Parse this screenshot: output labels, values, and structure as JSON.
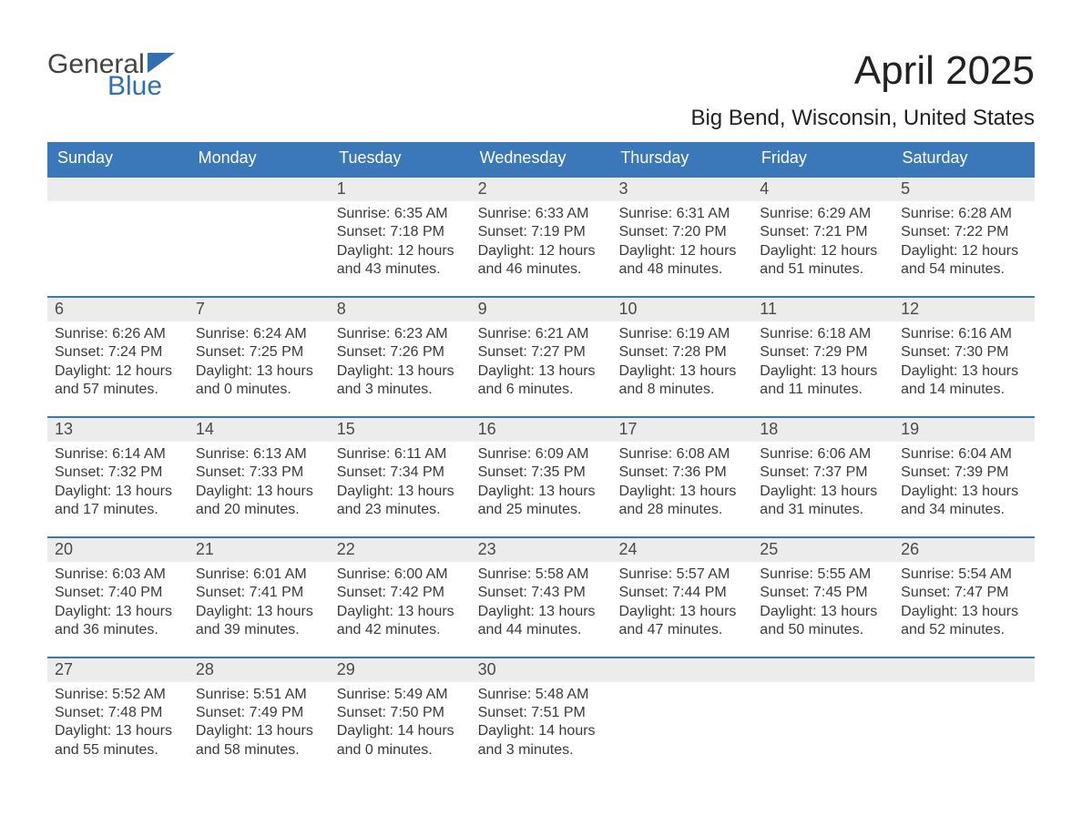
{
  "logo": {
    "word1": "General",
    "word2": "Blue",
    "accent_color": "#2f6fb2"
  },
  "header": {
    "month_title": "April 2025",
    "location": "Big Bend, Wisconsin, United States"
  },
  "calendar": {
    "header_bg": "#3a78b9",
    "header_fg": "#ffffff",
    "row_accent": "#3a78b9",
    "daybar_bg": "#ececec",
    "days_of_week": [
      "Sunday",
      "Monday",
      "Tuesday",
      "Wednesday",
      "Thursday",
      "Friday",
      "Saturday"
    ],
    "weeks": [
      [
        {
          "n": "",
          "sunrise": "",
          "sunset": "",
          "daylight": "",
          "empty": true
        },
        {
          "n": "",
          "sunrise": "",
          "sunset": "",
          "daylight": "",
          "empty": true
        },
        {
          "n": "1",
          "sunrise": "Sunrise: 6:35 AM",
          "sunset": "Sunset: 7:18 PM",
          "daylight": "Daylight: 12 hours and 43 minutes."
        },
        {
          "n": "2",
          "sunrise": "Sunrise: 6:33 AM",
          "sunset": "Sunset: 7:19 PM",
          "daylight": "Daylight: 12 hours and 46 minutes."
        },
        {
          "n": "3",
          "sunrise": "Sunrise: 6:31 AM",
          "sunset": "Sunset: 7:20 PM",
          "daylight": "Daylight: 12 hours and 48 minutes."
        },
        {
          "n": "4",
          "sunrise": "Sunrise: 6:29 AM",
          "sunset": "Sunset: 7:21 PM",
          "daylight": "Daylight: 12 hours and 51 minutes."
        },
        {
          "n": "5",
          "sunrise": "Sunrise: 6:28 AM",
          "sunset": "Sunset: 7:22 PM",
          "daylight": "Daylight: 12 hours and 54 minutes."
        }
      ],
      [
        {
          "n": "6",
          "sunrise": "Sunrise: 6:26 AM",
          "sunset": "Sunset: 7:24 PM",
          "daylight": "Daylight: 12 hours and 57 minutes."
        },
        {
          "n": "7",
          "sunrise": "Sunrise: 6:24 AM",
          "sunset": "Sunset: 7:25 PM",
          "daylight": "Daylight: 13 hours and 0 minutes."
        },
        {
          "n": "8",
          "sunrise": "Sunrise: 6:23 AM",
          "sunset": "Sunset: 7:26 PM",
          "daylight": "Daylight: 13 hours and 3 minutes."
        },
        {
          "n": "9",
          "sunrise": "Sunrise: 6:21 AM",
          "sunset": "Sunset: 7:27 PM",
          "daylight": "Daylight: 13 hours and 6 minutes."
        },
        {
          "n": "10",
          "sunrise": "Sunrise: 6:19 AM",
          "sunset": "Sunset: 7:28 PM",
          "daylight": "Daylight: 13 hours and 8 minutes."
        },
        {
          "n": "11",
          "sunrise": "Sunrise: 6:18 AM",
          "sunset": "Sunset: 7:29 PM",
          "daylight": "Daylight: 13 hours and 11 minutes."
        },
        {
          "n": "12",
          "sunrise": "Sunrise: 6:16 AM",
          "sunset": "Sunset: 7:30 PM",
          "daylight": "Daylight: 13 hours and 14 minutes."
        }
      ],
      [
        {
          "n": "13",
          "sunrise": "Sunrise: 6:14 AM",
          "sunset": "Sunset: 7:32 PM",
          "daylight": "Daylight: 13 hours and 17 minutes."
        },
        {
          "n": "14",
          "sunrise": "Sunrise: 6:13 AM",
          "sunset": "Sunset: 7:33 PM",
          "daylight": "Daylight: 13 hours and 20 minutes."
        },
        {
          "n": "15",
          "sunrise": "Sunrise: 6:11 AM",
          "sunset": "Sunset: 7:34 PM",
          "daylight": "Daylight: 13 hours and 23 minutes."
        },
        {
          "n": "16",
          "sunrise": "Sunrise: 6:09 AM",
          "sunset": "Sunset: 7:35 PM",
          "daylight": "Daylight: 13 hours and 25 minutes."
        },
        {
          "n": "17",
          "sunrise": "Sunrise: 6:08 AM",
          "sunset": "Sunset: 7:36 PM",
          "daylight": "Daylight: 13 hours and 28 minutes."
        },
        {
          "n": "18",
          "sunrise": "Sunrise: 6:06 AM",
          "sunset": "Sunset: 7:37 PM",
          "daylight": "Daylight: 13 hours and 31 minutes."
        },
        {
          "n": "19",
          "sunrise": "Sunrise: 6:04 AM",
          "sunset": "Sunset: 7:39 PM",
          "daylight": "Daylight: 13 hours and 34 minutes."
        }
      ],
      [
        {
          "n": "20",
          "sunrise": "Sunrise: 6:03 AM",
          "sunset": "Sunset: 7:40 PM",
          "daylight": "Daylight: 13 hours and 36 minutes."
        },
        {
          "n": "21",
          "sunrise": "Sunrise: 6:01 AM",
          "sunset": "Sunset: 7:41 PM",
          "daylight": "Daylight: 13 hours and 39 minutes."
        },
        {
          "n": "22",
          "sunrise": "Sunrise: 6:00 AM",
          "sunset": "Sunset: 7:42 PM",
          "daylight": "Daylight: 13 hours and 42 minutes."
        },
        {
          "n": "23",
          "sunrise": "Sunrise: 5:58 AM",
          "sunset": "Sunset: 7:43 PM",
          "daylight": "Daylight: 13 hours and 44 minutes."
        },
        {
          "n": "24",
          "sunrise": "Sunrise: 5:57 AM",
          "sunset": "Sunset: 7:44 PM",
          "daylight": "Daylight: 13 hours and 47 minutes."
        },
        {
          "n": "25",
          "sunrise": "Sunrise: 5:55 AM",
          "sunset": "Sunset: 7:45 PM",
          "daylight": "Daylight: 13 hours and 50 minutes."
        },
        {
          "n": "26",
          "sunrise": "Sunrise: 5:54 AM",
          "sunset": "Sunset: 7:47 PM",
          "daylight": "Daylight: 13 hours and 52 minutes."
        }
      ],
      [
        {
          "n": "27",
          "sunrise": "Sunrise: 5:52 AM",
          "sunset": "Sunset: 7:48 PM",
          "daylight": "Daylight: 13 hours and 55 minutes."
        },
        {
          "n": "28",
          "sunrise": "Sunrise: 5:51 AM",
          "sunset": "Sunset: 7:49 PM",
          "daylight": "Daylight: 13 hours and 58 minutes."
        },
        {
          "n": "29",
          "sunrise": "Sunrise: 5:49 AM",
          "sunset": "Sunset: 7:50 PM",
          "daylight": "Daylight: 14 hours and 0 minutes."
        },
        {
          "n": "30",
          "sunrise": "Sunrise: 5:48 AM",
          "sunset": "Sunset: 7:51 PM",
          "daylight": "Daylight: 14 hours and 3 minutes."
        },
        {
          "n": "",
          "sunrise": "",
          "sunset": "",
          "daylight": "",
          "empty": true
        },
        {
          "n": "",
          "sunrise": "",
          "sunset": "",
          "daylight": "",
          "empty": true
        },
        {
          "n": "",
          "sunrise": "",
          "sunset": "",
          "daylight": "",
          "empty": true
        }
      ]
    ]
  }
}
